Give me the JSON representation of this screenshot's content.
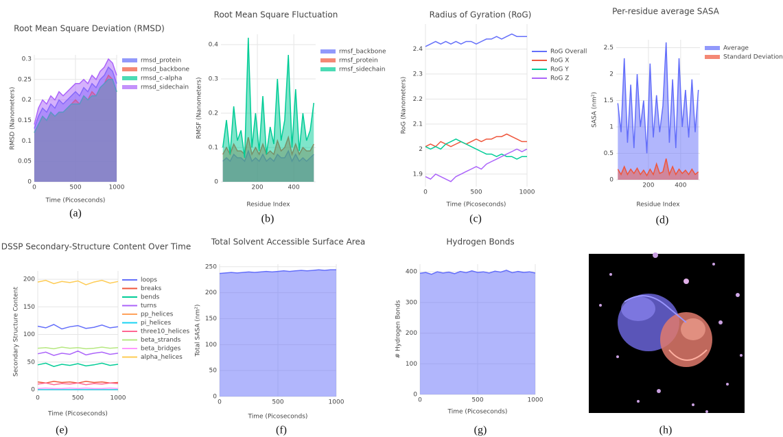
{
  "chart_data": [
    {
      "type": "area",
      "title": "Root Mean Square Deviation (RMSD)",
      "xlabel": "Time (Picoseconds)",
      "ylabel": "RMSD (Nanometers)",
      "caption": "(a)",
      "x": [
        0,
        50,
        100,
        150,
        200,
        250,
        300,
        350,
        400,
        450,
        500,
        550,
        600,
        650,
        700,
        750,
        800,
        850,
        900,
        950,
        1000
      ],
      "xlim": [
        0,
        1000
      ],
      "xticks": [
        0,
        500,
        1000
      ],
      "ylim": [
        0,
        0.31
      ],
      "yticks": [
        0,
        0.05,
        0.1,
        0.15,
        0.2,
        0.25,
        0.3
      ],
      "grid": true,
      "series": [
        {
          "name": "rmsd_protein",
          "color": "#636efa",
          "values": [
            0.13,
            0.16,
            0.18,
            0.17,
            0.19,
            0.18,
            0.2,
            0.19,
            0.2,
            0.21,
            0.22,
            0.21,
            0.23,
            0.22,
            0.24,
            0.23,
            0.25,
            0.26,
            0.28,
            0.27,
            0.24
          ]
        },
        {
          "name": "rmsd_backbone",
          "color": "#ef553b",
          "values": [
            0.12,
            0.14,
            0.16,
            0.15,
            0.17,
            0.16,
            0.17,
            0.17,
            0.18,
            0.19,
            0.2,
            0.19,
            0.21,
            0.2,
            0.22,
            0.21,
            0.23,
            0.24,
            0.26,
            0.25,
            0.22
          ]
        },
        {
          "name": "rmsd_c-alpha",
          "color": "#00cc96",
          "values": [
            0.12,
            0.14,
            0.16,
            0.15,
            0.17,
            0.16,
            0.17,
            0.17,
            0.18,
            0.19,
            0.19,
            0.19,
            0.21,
            0.2,
            0.21,
            0.21,
            0.23,
            0.24,
            0.25,
            0.25,
            0.22
          ]
        },
        {
          "name": "rmsd_sidechain",
          "color": "#ab63fa",
          "values": [
            0.14,
            0.18,
            0.2,
            0.19,
            0.21,
            0.2,
            0.22,
            0.21,
            0.22,
            0.23,
            0.24,
            0.24,
            0.25,
            0.24,
            0.26,
            0.25,
            0.27,
            0.28,
            0.3,
            0.29,
            0.26
          ]
        }
      ]
    },
    {
      "type": "area",
      "title": "Root Mean Square Fluctuation",
      "xlabel": "Residue Index",
      "ylabel": "RMSF (Nanometers)",
      "caption": "(b)",
      "x": [
        10,
        30,
        50,
        70,
        90,
        110,
        130,
        150,
        170,
        190,
        210,
        230,
        250,
        270,
        290,
        310,
        330,
        350,
        370,
        390,
        410,
        430,
        450,
        470,
        490,
        510
      ],
      "xlim": [
        0,
        520
      ],
      "xticks": [
        200,
        400
      ],
      "ylim": [
        0,
        0.43
      ],
      "yticks": [
        0,
        0.1,
        0.2,
        0.3,
        0.4
      ],
      "grid": true,
      "series": [
        {
          "name": "rmsf_backbone",
          "color": "#636efa",
          "values": [
            0.06,
            0.07,
            0.06,
            0.08,
            0.07,
            0.07,
            0.06,
            0.09,
            0.06,
            0.07,
            0.06,
            0.08,
            0.06,
            0.07,
            0.06,
            0.08,
            0.07,
            0.07,
            0.09,
            0.06,
            0.08,
            0.06,
            0.07,
            0.06,
            0.07,
            0.08
          ]
        },
        {
          "name": "rmsf_protein",
          "color": "#ef553b",
          "values": [
            0.08,
            0.1,
            0.08,
            0.11,
            0.09,
            0.09,
            0.08,
            0.13,
            0.08,
            0.1,
            0.08,
            0.11,
            0.08,
            0.09,
            0.08,
            0.12,
            0.09,
            0.1,
            0.13,
            0.08,
            0.11,
            0.08,
            0.1,
            0.09,
            0.09,
            0.11
          ]
        },
        {
          "name": "rmsf_sidechain",
          "color": "#00cc96",
          "values": [
            0.1,
            0.18,
            0.08,
            0.22,
            0.12,
            0.15,
            0.07,
            0.42,
            0.1,
            0.2,
            0.09,
            0.25,
            0.08,
            0.16,
            0.11,
            0.3,
            0.12,
            0.18,
            0.37,
            0.1,
            0.27,
            0.09,
            0.2,
            0.12,
            0.15,
            0.23
          ]
        }
      ]
    },
    {
      "type": "line",
      "title": "Radius of Gyration (RoG)",
      "xlabel": "Time (Picoseconds)",
      "ylabel": "RoG (Nanometers)",
      "caption": "(c)",
      "x": [
        0,
        50,
        100,
        150,
        200,
        250,
        300,
        350,
        400,
        450,
        500,
        550,
        600,
        650,
        700,
        750,
        800,
        850,
        900,
        950,
        1000
      ],
      "xlim": [
        0,
        1000
      ],
      "xticks": [
        0,
        500,
        1000
      ],
      "ylim": [
        1.85,
        2.5
      ],
      "yticks": [
        1.9,
        2,
        2.1,
        2.2,
        2.3,
        2.4
      ],
      "grid": true,
      "series": [
        {
          "name": "RoG Overall",
          "color": "#636efa",
          "values": [
            2.41,
            2.42,
            2.43,
            2.42,
            2.43,
            2.42,
            2.43,
            2.42,
            2.43,
            2.43,
            2.42,
            2.43,
            2.44,
            2.44,
            2.45,
            2.44,
            2.45,
            2.46,
            2.45,
            2.45,
            2.45
          ]
        },
        {
          "name": "RoG X",
          "color": "#ef553b",
          "values": [
            2.01,
            2.02,
            2.01,
            2.03,
            2.02,
            2.01,
            2.02,
            2.03,
            2.02,
            2.03,
            2.04,
            2.03,
            2.04,
            2.04,
            2.05,
            2.05,
            2.06,
            2.05,
            2.04,
            2.03,
            2.03
          ]
        },
        {
          "name": "RoG Y",
          "color": "#00cc96",
          "values": [
            2.01,
            2.0,
            2.01,
            2.0,
            2.02,
            2.03,
            2.04,
            2.03,
            2.02,
            2.01,
            2.0,
            1.99,
            1.98,
            1.98,
            1.97,
            1.98,
            1.97,
            1.97,
            1.96,
            1.97,
            1.97
          ]
        },
        {
          "name": "RoG Z",
          "color": "#ab63fa",
          "values": [
            1.89,
            1.88,
            1.9,
            1.89,
            1.88,
            1.87,
            1.89,
            1.9,
            1.91,
            1.92,
            1.93,
            1.92,
            1.94,
            1.95,
            1.96,
            1.97,
            1.98,
            1.99,
            2.0,
            1.99,
            2.0
          ]
        }
      ]
    },
    {
      "type": "area",
      "title": "Per-residue average SASA",
      "xlabel": "Residue Index",
      "ylabel": "SASA (nm²)",
      "caption": "(d)",
      "x": [
        10,
        30,
        50,
        70,
        90,
        110,
        130,
        150,
        170,
        190,
        210,
        230,
        250,
        270,
        290,
        310,
        330,
        350,
        370,
        390,
        410,
        430,
        450,
        470,
        490,
        510
      ],
      "xlim": [
        0,
        520
      ],
      "xticks": [
        200,
        400
      ],
      "ylim": [
        0,
        2.65
      ],
      "yticks": [
        0,
        0.5,
        1,
        1.5,
        2,
        2.5
      ],
      "grid": true,
      "series": [
        {
          "name": "Average",
          "color": "#636efa",
          "values": [
            1.45,
            0.9,
            2.3,
            0.7,
            1.8,
            0.6,
            2.0,
            1.0,
            1.5,
            0.5,
            2.2,
            0.8,
            1.6,
            0.9,
            1.4,
            2.6,
            0.7,
            1.9,
            0.6,
            2.3,
            1.0,
            1.7,
            0.8,
            1.9,
            0.9,
            1.7
          ]
        },
        {
          "name": "Standard Deviation",
          "color": "#ef553b",
          "values": [
            0.2,
            0.1,
            0.25,
            0.1,
            0.2,
            0.12,
            0.22,
            0.1,
            0.18,
            0.08,
            0.2,
            0.1,
            0.3,
            0.12,
            0.15,
            0.4,
            0.1,
            0.25,
            0.1,
            0.2,
            0.12,
            0.18,
            0.1,
            0.2,
            0.1,
            0.15
          ]
        }
      ]
    },
    {
      "type": "line",
      "title": "DSSP Secondary-Structure Content Over Time",
      "xlabel": "Time (Picoseconds)",
      "ylabel": "Secondary Structure Content",
      "caption": "(e)",
      "x": [
        0,
        100,
        200,
        300,
        400,
        500,
        600,
        700,
        800,
        900,
        1000
      ],
      "xlim": [
        0,
        1000
      ],
      "xticks": [
        0,
        500,
        1000
      ],
      "ylim": [
        -5,
        215
      ],
      "yticks": [
        0,
        50,
        100,
        150,
        200
      ],
      "grid": true,
      "series": [
        {
          "name": "loops",
          "color": "#636efa",
          "values": [
            115,
            112,
            118,
            110,
            114,
            116,
            111,
            113,
            117,
            112,
            114
          ]
        },
        {
          "name": "breaks",
          "color": "#ef553b",
          "values": [
            14,
            12,
            15,
            13,
            14,
            12,
            15,
            13,
            14,
            12,
            13
          ]
        },
        {
          "name": "bends",
          "color": "#00cc96",
          "values": [
            45,
            48,
            42,
            46,
            44,
            47,
            43,
            45,
            48,
            44,
            46
          ]
        },
        {
          "name": "turns",
          "color": "#ab63fa",
          "values": [
            65,
            68,
            62,
            66,
            64,
            70,
            63,
            66,
            68,
            64,
            66
          ]
        },
        {
          "name": "pp_helices",
          "color": "#ffa15a",
          "values": [
            0,
            0,
            0,
            0,
            0,
            0,
            0,
            0,
            0,
            0,
            0
          ]
        },
        {
          "name": "pi_helices",
          "color": "#19d3f3",
          "values": [
            0,
            0,
            0,
            0,
            0,
            0,
            0,
            0,
            0,
            0,
            0
          ]
        },
        {
          "name": "three10_helices",
          "color": "#ff6692",
          "values": [
            10,
            12,
            9,
            11,
            10,
            12,
            9,
            11,
            10,
            12,
            11
          ]
        },
        {
          "name": "beta_strands",
          "color": "#b6e880",
          "values": [
            75,
            76,
            74,
            77,
            75,
            76,
            74,
            75,
            77,
            75,
            76
          ]
        },
        {
          "name": "beta_bridges",
          "color": "#ff97ff",
          "values": [
            2,
            3,
            2,
            2,
            3,
            2,
            3,
            2,
            2,
            3,
            2
          ]
        },
        {
          "name": "alpha_helices",
          "color": "#fecb52",
          "values": [
            195,
            198,
            192,
            196,
            194,
            197,
            190,
            195,
            198,
            193,
            196
          ]
        }
      ]
    },
    {
      "type": "area",
      "title": "Total Solvent Accessible Surface Area",
      "xlabel": "Time (Picoseconds)",
      "ylabel": "Total SASA (nm²)",
      "caption": "(f)",
      "x": [
        0,
        50,
        100,
        150,
        200,
        250,
        300,
        350,
        400,
        450,
        500,
        550,
        600,
        650,
        700,
        750,
        800,
        850,
        900,
        950,
        1000
      ],
      "xlim": [
        0,
        1000
      ],
      "xticks": [
        0,
        500,
        1000
      ],
      "ylim": [
        0,
        255
      ],
      "yticks": [
        0,
        50,
        100,
        150,
        200,
        250
      ],
      "grid": true,
      "series": [
        {
          "color": "#636efa",
          "values": [
            237,
            238,
            239,
            238,
            239,
            240,
            239,
            240,
            241,
            240,
            241,
            242,
            241,
            242,
            243,
            242,
            243,
            244,
            243,
            244,
            244
          ]
        }
      ]
    },
    {
      "type": "area",
      "title": "Hydrogen Bonds",
      "xlabel": "Time (Picoseconds)",
      "ylabel": "# Hydrogen Bonds",
      "caption": "(g)",
      "x": [
        0,
        50,
        100,
        150,
        200,
        250,
        300,
        350,
        400,
        450,
        500,
        550,
        600,
        650,
        700,
        750,
        800,
        850,
        900,
        950,
        1000
      ],
      "xlim": [
        0,
        1000
      ],
      "xticks": [
        0,
        500,
        1000
      ],
      "ylim": [
        0,
        425
      ],
      "yticks": [
        0,
        100,
        200,
        300,
        400
      ],
      "grid": true,
      "series": [
        {
          "color": "#636efa",
          "values": [
            395,
            398,
            392,
            400,
            396,
            399,
            394,
            401,
            397,
            403,
            398,
            400,
            396,
            402,
            399,
            405,
            397,
            401,
            398,
            400,
            396
          ]
        }
      ]
    }
  ],
  "image": {
    "caption": "(h)"
  }
}
